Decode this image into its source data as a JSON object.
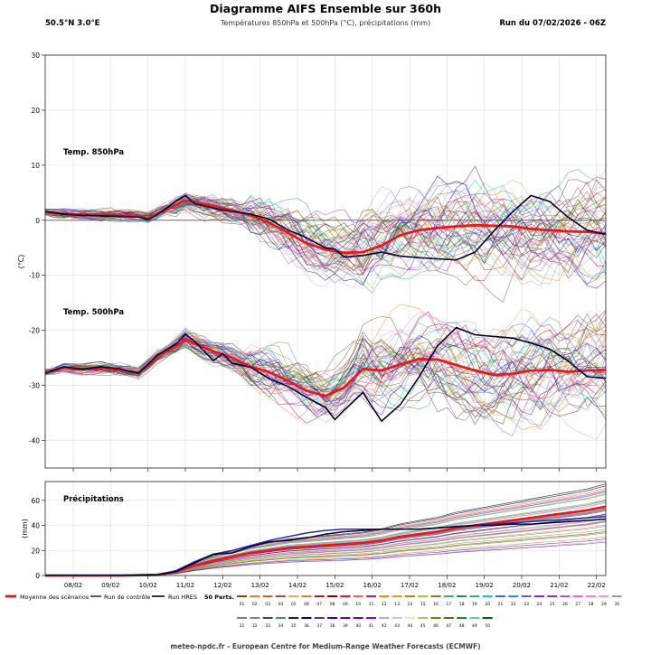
{
  "header": {
    "title": "Diagramme AIFS Ensemble sur 360h",
    "subtitle": "Températures 850hPa et 500hPa (°C), précipitations (mm)",
    "location": "50.5°N  3.0°E",
    "run": "Run du 07/02/2026 - 06Z"
  },
  "footer": "meteo-npdc.fr - European Centre for Medium-Range Weather Forecasts (ECMWF)",
  "legend": {
    "mean": "Moyenne des scénarios",
    "control": "Run de contrôle",
    "hres": "Run HRES",
    "perts_label": "50 Perts.",
    "perts": [
      "01",
      "02",
      "03",
      "04",
      "05",
      "06",
      "07",
      "08",
      "09",
      "10",
      "11",
      "12",
      "13",
      "14",
      "15",
      "16",
      "17",
      "18",
      "19",
      "20",
      "21",
      "22",
      "23",
      "24",
      "25",
      "26",
      "27",
      "28",
      "29",
      "30",
      "31",
      "32",
      "33",
      "34",
      "35",
      "36",
      "37",
      "38",
      "39",
      "40",
      "41",
      "42",
      "43",
      "44",
      "45",
      "46",
      "47",
      "48",
      "49",
      "50"
    ]
  },
  "colors": {
    "mean": "#e41a1c",
    "control": "#2c2ca0",
    "hres": "#000033",
    "perts": [
      "#8b4513",
      "#e08030",
      "#d2691e",
      "#a0522d",
      "#f4a460",
      "#cd853f",
      "#b22222",
      "#8b0000",
      "#dc143c",
      "#ff6347",
      "#c71585",
      "#ff8c00",
      "#daa520",
      "#b8860b",
      "#9acd32",
      "#6b8e23",
      "#3cb371",
      "#2e8b57",
      "#20b2aa",
      "#00ced1",
      "#4169e1",
      "#1e90ff",
      "#6a5acd",
      "#8a2be2",
      "#9932cc",
      "#ba55d3",
      "#da70d6",
      "#ee82ee",
      "#dda0dd",
      "#bc8f8f",
      "#708090",
      "#778899",
      "#2f4f4f",
      "#4682b4",
      "#191970",
      "#000080",
      "#483d8b",
      "#4b0082",
      "#800080",
      "#8b008b",
      "#9400d3",
      "#c8a2c8",
      "#d8bfd8",
      "#f5deb3",
      "#bdb76b",
      "#808000",
      "#556b2f",
      "#228b22",
      "#66cdaa",
      "#006400"
    ]
  },
  "chart_data": [
    {
      "type": "line",
      "title": "Températures 850hPa et 500hPa",
      "ylabel": "(°C)",
      "ylim": [
        -45,
        30
      ],
      "yticks": [
        -40,
        -30,
        -20,
        -10,
        0,
        10,
        20,
        30
      ],
      "xlim": [
        0,
        360
      ],
      "xtick_hours": [
        18,
        42,
        66,
        90,
        114,
        138,
        162,
        186,
        210,
        234,
        258,
        282,
        306,
        330,
        354
      ],
      "xtick_labels": [
        "08/02",
        "09/02",
        "10/02",
        "11/02",
        "12/02",
        "13/02",
        "14/02",
        "15/02",
        "16/02",
        "17/02",
        "18/02",
        "19/02",
        "20/02",
        "21/02",
        "22/02"
      ],
      "annotations": [
        "Temp. 850hPa",
        "Temp. 500hPa"
      ],
      "series": [
        {
          "name": "Moyenne 850hPa",
          "x": [
            0,
            12,
            24,
            36,
            48,
            60,
            66,
            72,
            78,
            84,
            90,
            96,
            108,
            120,
            132,
            144,
            156,
            168,
            180,
            192,
            204,
            216,
            228,
            240,
            252,
            264,
            276,
            288,
            300,
            312,
            324,
            336,
            348,
            360
          ],
          "values": [
            1.5,
            1.2,
            1.0,
            1.0,
            0.9,
            0.7,
            0.4,
            1.2,
            2.0,
            2.8,
            3.6,
            3.3,
            2.6,
            1.8,
            0.9,
            -0.5,
            -2.3,
            -4.2,
            -5.3,
            -5.9,
            -5.8,
            -4.6,
            -2.7,
            -1.8,
            -1.4,
            -1.1,
            -0.9,
            -1.0,
            -1.1,
            -1.6,
            -1.8,
            -2.0,
            -2.1,
            -2.4
          ]
        },
        {
          "name": "Run HRES 850hPa",
          "x": [
            0,
            12,
            24,
            36,
            48,
            60,
            66,
            72,
            78,
            84,
            90,
            96,
            108,
            120,
            132,
            144,
            156,
            168,
            180,
            186,
            192,
            204,
            216,
            228,
            240,
            252,
            264,
            276,
            288,
            300,
            312,
            324,
            336,
            348,
            360
          ],
          "values": [
            1.6,
            1.1,
            0.9,
            0.8,
            0.7,
            0.6,
            0.1,
            1.0,
            2.2,
            3.5,
            4.5,
            3.0,
            2.2,
            1.6,
            1.1,
            0.2,
            -1.8,
            -3.2,
            -5.0,
            -5.2,
            -6.7,
            -6.4,
            -5.8,
            -6.5,
            -6.8,
            -7.0,
            -7.2,
            -5.8,
            -2.0,
            1.5,
            4.5,
            3.4,
            0.5,
            -1.8,
            -2.6
          ]
        },
        {
          "name": "Moyenne 500hPa",
          "x": [
            0,
            12,
            24,
            36,
            48,
            60,
            72,
            84,
            90,
            96,
            108,
            120,
            132,
            144,
            156,
            168,
            180,
            192,
            204,
            216,
            228,
            240,
            252,
            264,
            276,
            288,
            300,
            312,
            324,
            336,
            348,
            360
          ],
          "values": [
            -27.6,
            -26.8,
            -27.0,
            -26.9,
            -27.2,
            -27.7,
            -24.8,
            -22.9,
            -21.6,
            -22.4,
            -23.8,
            -25.0,
            -26.6,
            -27.6,
            -29.2,
            -31.0,
            -31.9,
            -30.4,
            -27.0,
            -27.3,
            -26.2,
            -25.2,
            -25.3,
            -26.3,
            -27.3,
            -28.1,
            -27.9,
            -27.3,
            -27.2,
            -27.5,
            -27.3,
            -27.2
          ]
        },
        {
          "name": "Run HRES 500hPa",
          "x": [
            0,
            12,
            24,
            36,
            48,
            60,
            72,
            84,
            90,
            96,
            108,
            114,
            120,
            132,
            144,
            156,
            168,
            180,
            186,
            192,
            204,
            216,
            228,
            240,
            252,
            264,
            276,
            288,
            300,
            312,
            324,
            336,
            348,
            360
          ],
          "values": [
            -27.8,
            -26.6,
            -27.1,
            -26.6,
            -27.0,
            -27.8,
            -24.5,
            -22.5,
            -20.7,
            -22.0,
            -25.5,
            -24.2,
            -26.0,
            -26.7,
            -28.8,
            -30.2,
            -32.2,
            -34.0,
            -36.2,
            -34.5,
            -31.3,
            -36.5,
            -33.5,
            -28.5,
            -22.8,
            -19.5,
            -20.8,
            -21.1,
            -21.4,
            -22.3,
            -23.4,
            -25.6,
            -28.4,
            -28.7
          ]
        }
      ]
    },
    {
      "type": "line",
      "title": "Précipitations",
      "ylabel": "(mm)",
      "ylim": [
        0,
        75
      ],
      "yticks": [
        0,
        20,
        40,
        60
      ],
      "xlim": [
        0,
        360
      ],
      "xtick_labels": [
        "08/02",
        "09/02",
        "10/02",
        "11/02",
        "12/02",
        "13/02",
        "14/02",
        "15/02",
        "16/02",
        "17/02",
        "18/02",
        "19/02",
        "20/02",
        "21/02",
        "22/02"
      ],
      "annotations": [
        "Précipitations"
      ],
      "series": [
        {
          "name": "Moyenne des scénarios",
          "x": [
            0,
            48,
            72,
            84,
            96,
            108,
            120,
            132,
            144,
            156,
            168,
            180,
            192,
            204,
            216,
            228,
            240,
            252,
            264,
            276,
            288,
            300,
            312,
            324,
            336,
            348,
            360
          ],
          "values": [
            0,
            0,
            0.5,
            3,
            8,
            12,
            15,
            18,
            20,
            22,
            23,
            24,
            25,
            26,
            28,
            31,
            33,
            35,
            38,
            40,
            42,
            44,
            46,
            48,
            50,
            52,
            55
          ]
        },
        {
          "name": "Run de contrôle",
          "x": [
            0,
            48,
            72,
            84,
            96,
            108,
            120,
            132,
            144,
            156,
            168,
            180,
            192,
            204,
            216,
            228,
            240,
            252,
            264,
            276,
            288,
            300,
            312,
            324,
            336,
            348,
            360
          ],
          "values": [
            0,
            0,
            0.5,
            4,
            11,
            17,
            20,
            24,
            28,
            31,
            34,
            36,
            37,
            37,
            37,
            37,
            37,
            38,
            39,
            40,
            41,
            42,
            43,
            44,
            45,
            46,
            47
          ]
        },
        {
          "name": "Run HRES",
          "x": [
            0,
            48,
            72,
            84,
            96,
            108,
            120,
            132,
            144,
            156,
            168,
            180,
            192,
            204,
            216,
            228,
            240,
            252,
            264,
            276,
            288,
            300,
            312,
            324,
            336,
            348,
            360
          ],
          "values": [
            0,
            0,
            0.5,
            3,
            10,
            17,
            18,
            23,
            27,
            28,
            30,
            33,
            35,
            36,
            37,
            37,
            37,
            38,
            39,
            40,
            40,
            41,
            41,
            42,
            43,
            44,
            45
          ]
        }
      ]
    }
  ]
}
